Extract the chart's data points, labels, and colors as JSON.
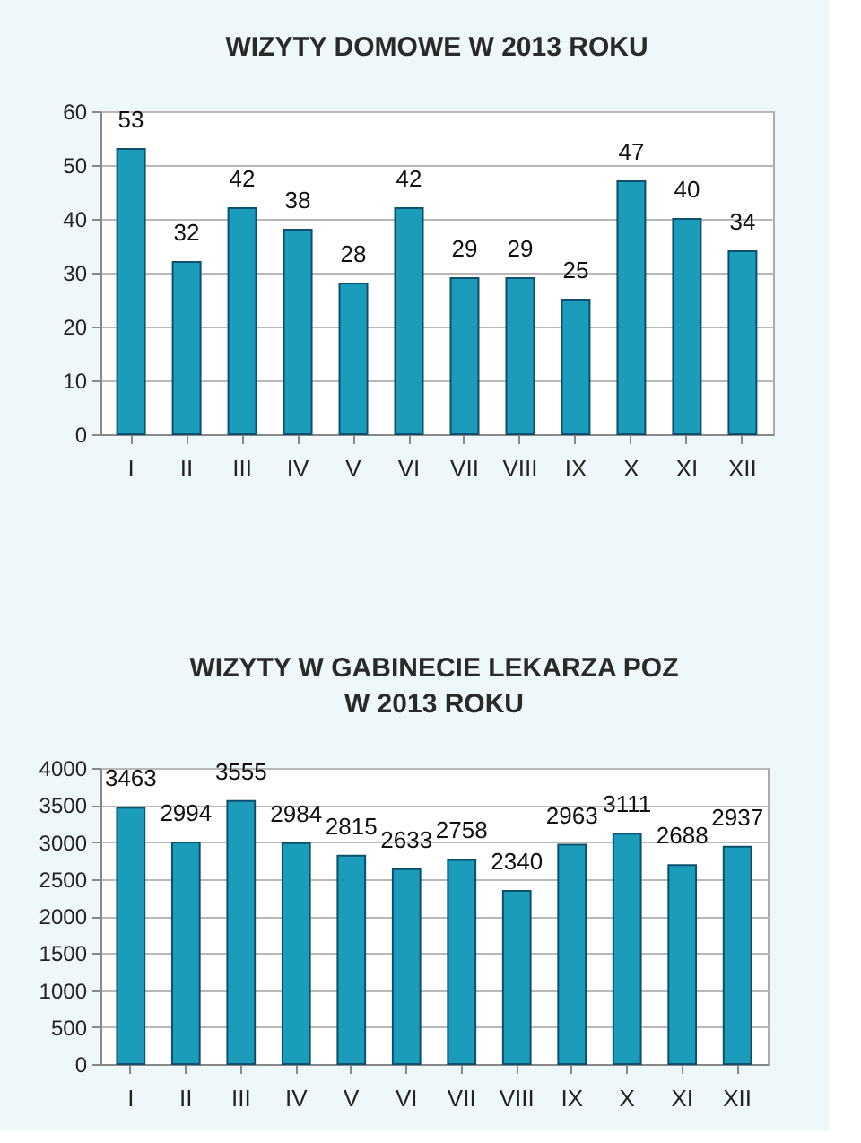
{
  "chart_data": [
    {
      "type": "bar",
      "title": "WIZYTY DOMOWE W 2013 ROKU",
      "categories": [
        "I",
        "II",
        "III",
        "IV",
        "V",
        "VI",
        "VII",
        "VIII",
        "IX",
        "X",
        "XI",
        "XII"
      ],
      "values": [
        53,
        32,
        42,
        38,
        28,
        42,
        29,
        29,
        25,
        47,
        40,
        34
      ],
      "color": "#1b9cbb",
      "ylim": [
        0,
        60
      ],
      "yticks": [
        0,
        10,
        20,
        30,
        40,
        50,
        60
      ],
      "grid": "y",
      "data_labels": true
    },
    {
      "type": "bar",
      "title": "WIZYTY W GABINECIE LEKARZA  POZ\nW 2013 ROKU",
      "categories": [
        "I",
        "II",
        "III",
        "IV",
        "V",
        "VI",
        "VII",
        "VIII",
        "IX",
        "X",
        "XI",
        "XII"
      ],
      "values": [
        3463,
        2994,
        3555,
        2984,
        2815,
        2633,
        2758,
        2340,
        2963,
        3111,
        2688,
        2937
      ],
      "color": "#1b9cbb",
      "ylim": [
        0,
        4000
      ],
      "yticks": [
        0,
        500,
        1000,
        1500,
        2000,
        2500,
        3000,
        3500,
        4000
      ],
      "grid": "y",
      "data_labels": true
    }
  ]
}
